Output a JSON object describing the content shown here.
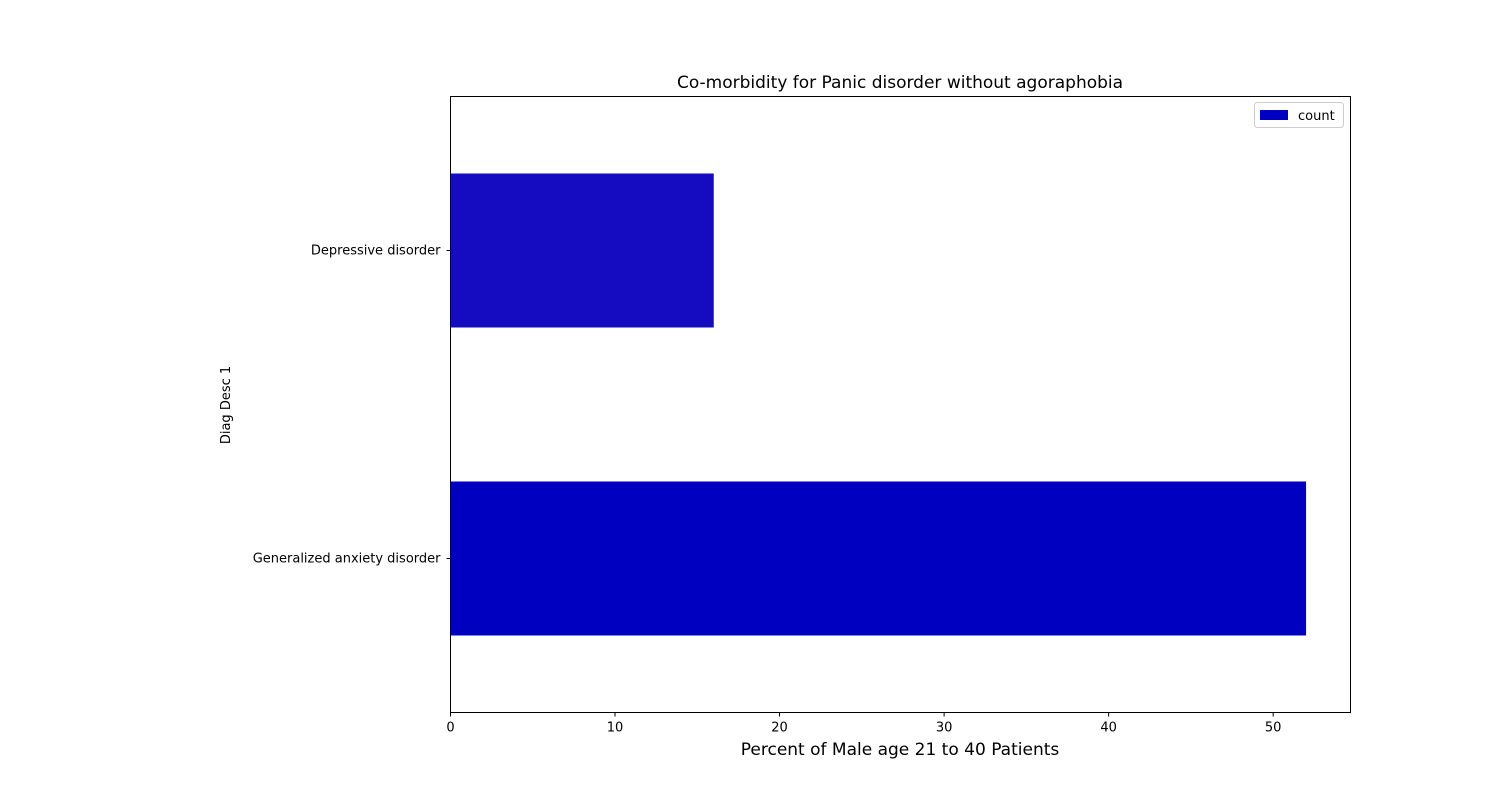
{
  "chart_data": {
    "type": "bar",
    "orientation": "horizontal",
    "title": "Co-morbidity for Panic disorder without agoraphobia",
    "xlabel": "Percent of Male age 21 to 40 Patients",
    "ylabel": "Diag Desc 1",
    "categories": [
      "Generalized anxiety disorder",
      "Depressive disorder"
    ],
    "series": [
      {
        "name": "count",
        "values": [
          52,
          16
        ],
        "colors": [
          "#0000c0",
          "#150bc0"
        ]
      }
    ],
    "xlim": [
      0,
      54.7
    ],
    "xticks": [
      0,
      10,
      20,
      30,
      40,
      50
    ],
    "grid": false,
    "legend_position": "top-right"
  }
}
